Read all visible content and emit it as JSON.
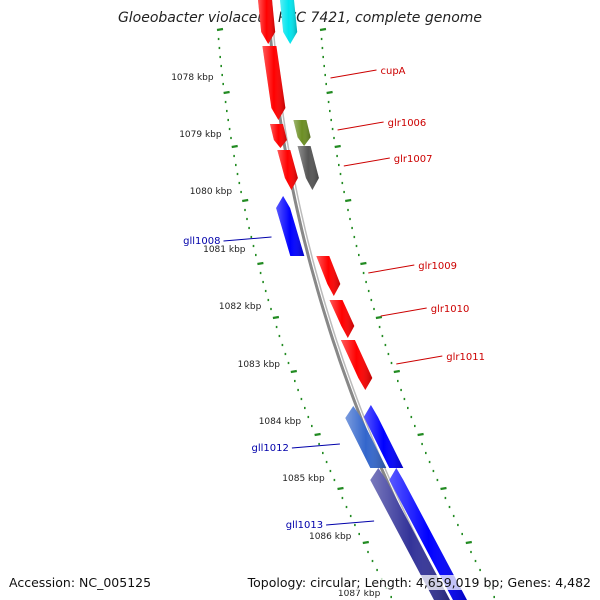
{
  "title": "Gloeobacter violaceus PCC 7421, complete genome",
  "footer": {
    "accession": "Accession: NC_005125",
    "summary": "Topology: circular; Length: 4,659,019 bp; Genes: 4,482"
  },
  "ticks": [
    "1078 kbp",
    "1079 kbp",
    "1080 kbp",
    "1081 kbp",
    "1082 kbp",
    "1083 kbp",
    "1084 kbp",
    "1085 kbp",
    "1086 kbp",
    "1087 kbp"
  ],
  "genes": [
    {
      "label": "",
      "strand": "+",
      "color": "#ff0000"
    },
    {
      "label": "",
      "strand": "+",
      "color": "#00e5ee"
    },
    {
      "label": "cupA",
      "strand": "+",
      "color": "#ff0000"
    },
    {
      "label": "glr1006",
      "strand": "+",
      "color": "#6b8e23"
    },
    {
      "label": "",
      "strand": "+",
      "color": "#ff0000"
    },
    {
      "label": "glr1007",
      "strand": "+",
      "color": "#555555"
    },
    {
      "label": "",
      "strand": "+",
      "color": "#ff0000"
    },
    {
      "label": "gll1008",
      "strand": "-",
      "color": "#0000ff"
    },
    {
      "label": "glr1009",
      "strand": "+",
      "color": "#ff0000"
    },
    {
      "label": "glr1010",
      "strand": "+",
      "color": "#ff0000"
    },
    {
      "label": "glr1011",
      "strand": "+",
      "color": "#ff0000"
    },
    {
      "label": "gll1012",
      "strand": "-",
      "color": "#3366cc"
    },
    {
      "label": "",
      "strand": "-",
      "color": "#0000ff"
    },
    {
      "label": "gll1013",
      "strand": "-",
      "color": "#333399"
    },
    {
      "label": "",
      "strand": "-",
      "color": "#0000ff"
    }
  ],
  "colors": {
    "tick": "#228b22",
    "backbone": "#888888",
    "forward_label": "#cc0000",
    "reverse_label": "#0000aa"
  }
}
